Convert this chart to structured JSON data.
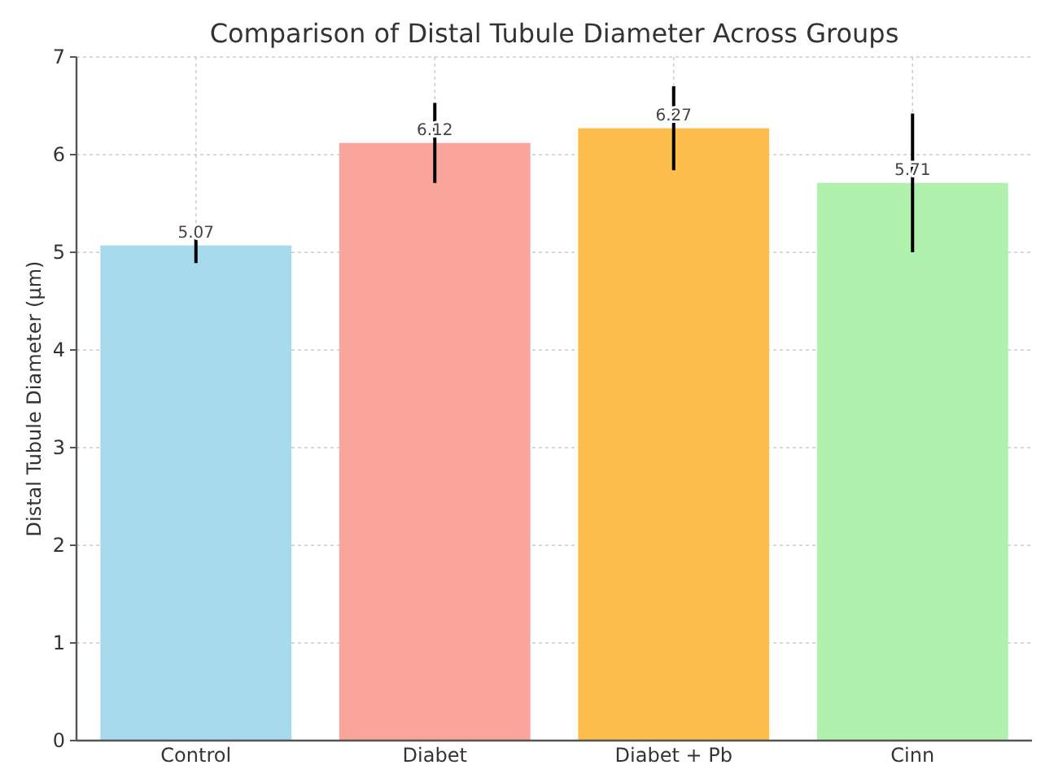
{
  "chart_data": {
    "type": "bar",
    "title": "Comparison of Distal Tubule Diameter Across Groups",
    "ylabel": "Distal Tubule Diameter (µm)",
    "categories": [
      "Control",
      "Diabet",
      "Diabet + Pb",
      "Cinn"
    ],
    "values": [
      5.07,
      6.12,
      6.27,
      5.71
    ],
    "colors": [
      "#a8daed",
      "#f9a59b",
      "#fdbe4c",
      "#b0f2ad"
    ],
    "errors": [
      0.18,
      0.41,
      0.43,
      0.71
    ],
    "data_labels": true,
    "ylim": [
      0,
      7
    ],
    "yticks": [
      0,
      1,
      2,
      3,
      4,
      5,
      6,
      7
    ],
    "grid": true
  }
}
